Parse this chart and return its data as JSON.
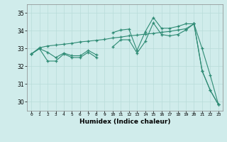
{
  "xlabel": "Humidex (Indice chaleur)",
  "x_values": [
    0,
    1,
    2,
    3,
    4,
    5,
    6,
    7,
    8,
    9,
    10,
    11,
    12,
    13,
    14,
    15,
    16,
    17,
    18,
    19,
    20,
    21,
    22,
    23
  ],
  "line_jagged": [
    32.7,
    33.0,
    32.8,
    32.5,
    32.75,
    32.6,
    32.6,
    32.9,
    32.65,
    null,
    33.9,
    34.05,
    34.1,
    32.9,
    33.95,
    34.75,
    34.15,
    34.15,
    34.25,
    34.4,
    34.4,
    31.75,
    30.65,
    29.85
  ],
  "line_upper": [
    32.7,
    33.05,
    33.15,
    33.2,
    33.25,
    33.3,
    33.38,
    33.42,
    33.47,
    33.52,
    33.6,
    33.65,
    33.72,
    33.76,
    33.82,
    33.86,
    33.92,
    33.97,
    34.05,
    34.12,
    34.4,
    33.0,
    31.5,
    29.85
  ],
  "line_lower": [
    32.7,
    33.0,
    32.3,
    32.3,
    32.7,
    32.5,
    32.5,
    32.8,
    32.5,
    null,
    33.1,
    33.5,
    33.5,
    32.75,
    33.4,
    34.45,
    33.8,
    33.72,
    33.8,
    34.05,
    34.4,
    31.75,
    30.65,
    29.85
  ],
  "ylim": [
    29.5,
    35.5
  ],
  "yticks": [
    30,
    31,
    32,
    33,
    34,
    35
  ],
  "color": "#2e8b74",
  "bg_color": "#d0eceb",
  "grid_color": "#b8dbd9"
}
